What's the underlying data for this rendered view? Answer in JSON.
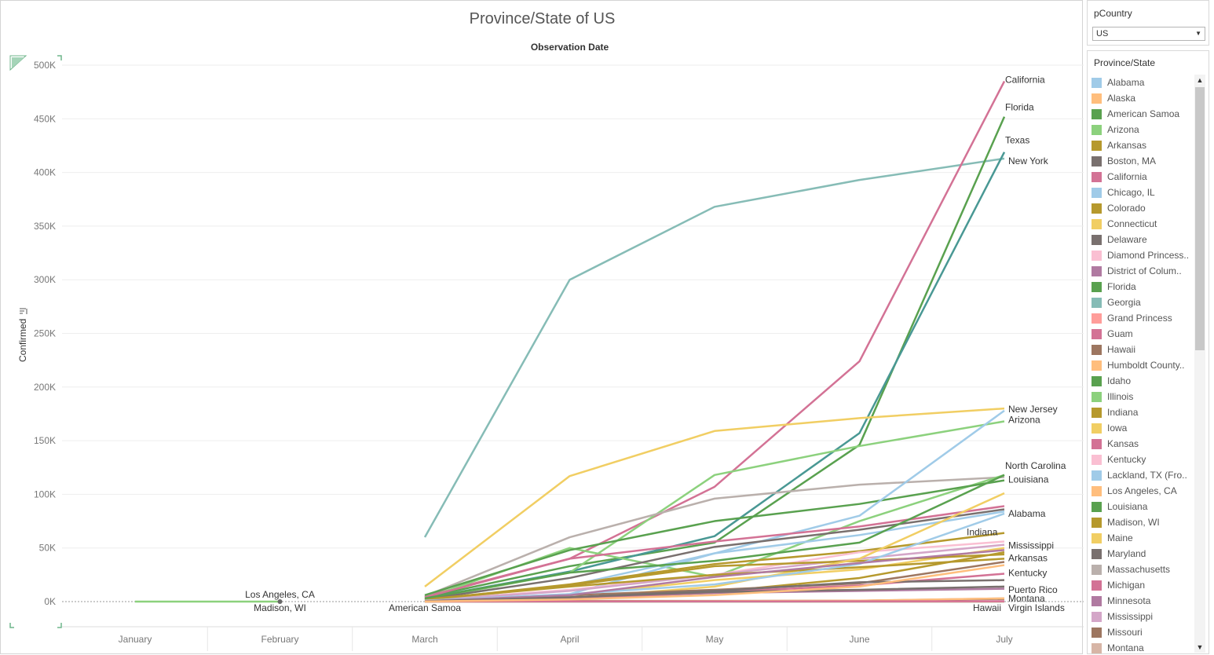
{
  "chart_data": {
    "type": "line",
    "title": "Province/State of US",
    "subtitle": "Observation Date",
    "ylabel": "Confirmed",
    "xlabel": "",
    "categories": [
      "January",
      "February",
      "March",
      "April",
      "May",
      "June",
      "July"
    ],
    "ylim": [
      0,
      500000
    ],
    "yticks": [
      0,
      50000,
      100000,
      150000,
      200000,
      250000,
      300000,
      350000,
      400000,
      450000,
      500000
    ],
    "ytick_labels": [
      "0K",
      "50K",
      "100K",
      "150K",
      "200K",
      "250K",
      "300K",
      "350K",
      "400K",
      "450K",
      "500K"
    ],
    "grid": true,
    "series": [
      {
        "name": "Georgia",
        "color": "#86bcb6",
        "values": [
          null,
          null,
          60000,
          300000,
          368000,
          393000,
          413000
        ]
      },
      {
        "name": "California",
        "color": "#d37295",
        "values": [
          null,
          null,
          5000,
          40000,
          107000,
          224000,
          485000
        ]
      },
      {
        "name": "Florida",
        "color": "#59a14f",
        "values": [
          null,
          null,
          4000,
          33000,
          55000,
          146000,
          452000
        ]
      },
      {
        "name": "Texas",
        "color": "#499894",
        "values": [
          null,
          null,
          3000,
          28000,
          61000,
          157000,
          419000
        ]
      },
      {
        "name": "Connecticut",
        "color": "#f1ce63",
        "values": [
          null,
          null,
          14000,
          117000,
          159000,
          171000,
          180000
        ]
      },
      {
        "name": "Arizona",
        "color": "#8cd17d",
        "values": [
          null,
          null,
          2000,
          27000,
          118000,
          145000,
          168000
        ]
      },
      {
        "name": "Massachusetts",
        "color": "#bab0ac",
        "values": [
          null,
          null,
          5000,
          60000,
          96000,
          109000,
          116000
        ]
      },
      {
        "name": "Illinois",
        "color": "#8cd17d",
        "values": [
          null,
          null,
          3000,
          50000,
          23000,
          75000,
          118000
        ]
      },
      {
        "name": "Idaho",
        "color": "#59a14f",
        "values": [
          null,
          null,
          6000,
          48000,
          75000,
          91000,
          113000
        ]
      },
      {
        "name": "Chicago, IL",
        "color": "#a0cbe8",
        "values": [
          null,
          null,
          1000,
          7000,
          45000,
          80000,
          178000
        ]
      },
      {
        "name": "Michigan",
        "color": "#d37295",
        "values": [
          null,
          null,
          4000,
          40000,
          56000,
          70000,
          89000
        ]
      },
      {
        "name": "Maryland",
        "color": "#79706e",
        "values": [
          null,
          null,
          2000,
          22000,
          51000,
          67000,
          86000
        ]
      },
      {
        "name": "Lackland, TX (From Diamond Princess)",
        "color": "#a0cbe8",
        "values": [
          null,
          null,
          1000,
          15000,
          45000,
          62000,
          84000
        ]
      },
      {
        "name": "Madison, WI",
        "color": "#b6992d",
        "values": [
          null,
          null,
          1500,
          16000,
          35000,
          47000,
          64000
        ]
      },
      {
        "name": "Kentucky",
        "color": "#fabfd2",
        "values": [
          null,
          null,
          1000,
          11000,
          25000,
          46000,
          56000
        ]
      },
      {
        "name": "Mississippi",
        "color": "#d4a6c8",
        "values": [
          null,
          null,
          1000,
          10000,
          25000,
          40000,
          53000
        ]
      },
      {
        "name": "Maine",
        "color": "#f1ce63",
        "values": [
          null,
          null,
          1000,
          6000,
          20000,
          30000,
          50000
        ]
      },
      {
        "name": "Arkansas",
        "color": "#b6992d",
        "values": [
          null,
          null,
          500,
          4000,
          9000,
          22000,
          46000
        ]
      },
      {
        "name": "Indiana",
        "color": "#b6992d",
        "values": [
          null,
          null,
          2000,
          15000,
          33000,
          38000,
          44000
        ]
      },
      {
        "name": "Iowa",
        "color": "#f1ce63",
        "values": [
          null,
          null,
          300,
          3000,
          14000,
          40000,
          101000
        ]
      },
      {
        "name": "Colorado",
        "color": "#b6992d",
        "values": [
          null,
          null,
          2000,
          14000,
          25000,
          32000,
          40000
        ]
      },
      {
        "name": "District of Columbia",
        "color": "#b07aa1",
        "values": [
          null,
          null,
          300,
          3000,
          8000,
          10000,
          12000
        ]
      },
      {
        "name": "Missouri",
        "color": "#9d7660",
        "values": [
          null,
          null,
          500,
          6000,
          11000,
          17000,
          37000
        ]
      },
      {
        "name": "Montana",
        "color": "#d7b5a6",
        "values": [
          null,
          null,
          100,
          400,
          500,
          800,
          3000
        ]
      },
      {
        "name": "Alabama",
        "color": "#a0cbe8",
        "values": [
          null,
          null,
          900,
          7000,
          16000,
          35000,
          82000
        ]
      },
      {
        "name": "Minnesota",
        "color": "#b07aa1",
        "values": [
          null,
          null,
          500,
          6000,
          23000,
          36000,
          48000
        ]
      },
      {
        "name": "Kansas",
        "color": "#d37295",
        "values": [
          null,
          null,
          400,
          2500,
          9000,
          15000,
          26000
        ]
      },
      {
        "name": "Delaware",
        "color": "#79706e",
        "values": [
          null,
          null,
          300,
          4000,
          9000,
          11000,
          14000
        ]
      },
      {
        "name": "Louisiana",
        "color": "#59a14f",
        "values": [
          null,
          null,
          3000,
          27000,
          38000,
          55000,
          118000
        ]
      },
      {
        "name": "American Samoa",
        "color": "#59a14f",
        "values": [
          null,
          null,
          0,
          0,
          0,
          0,
          0
        ]
      },
      {
        "name": "Grand Princess",
        "color": "#ff9d9a",
        "values": [
          null,
          null,
          20,
          100,
          100,
          100,
          100
        ]
      },
      {
        "name": "Hawaii",
        "color": "#9d7660",
        "values": [
          null,
          null,
          100,
          600,
          650,
          800,
          2500
        ]
      },
      {
        "name": "Alaska",
        "color": "#ffbe7d",
        "values": [
          null,
          null,
          100,
          400,
          450,
          900,
          3000
        ]
      },
      {
        "name": "Guam",
        "color": "#d37295",
        "values": [
          null,
          null,
          50,
          140,
          160,
          250,
          350
        ]
      },
      {
        "name": "Los Angeles, CA",
        "color": "#8cd17d",
        "values": [
          1,
          1,
          null,
          null,
          null,
          null,
          null
        ]
      },
      {
        "name": "Madison, WI (Feb)",
        "color": "#666666",
        "values": [
          null,
          1,
          null,
          null,
          null,
          null,
          null
        ]
      },
      {
        "name": "Boston, MA",
        "color": "#79706e",
        "values": [
          null,
          null,
          200,
          4000,
          10000,
          18000,
          20000
        ]
      },
      {
        "name": "Humboldt County, CA",
        "color": "#ffbe7d",
        "values": [
          null,
          null,
          100,
          2000,
          6000,
          14000,
          34000
        ]
      }
    ],
    "annotations": [
      {
        "text": "California",
        "col": 6,
        "value": 485000
      },
      {
        "text": "Florida",
        "col": 6,
        "value": 452000
      },
      {
        "text": "Texas",
        "col": 6,
        "value": 419000
      },
      {
        "text": "New York",
        "col": 6,
        "value": 413000
      },
      {
        "text": "New Jersey",
        "col": 6,
        "value": 180000
      },
      {
        "text": "Arizona",
        "col": 6,
        "value": 168000
      },
      {
        "text": "North Carolina",
        "col": 6,
        "value": 118000
      },
      {
        "text": "Louisiana",
        "col": 6,
        "value": 113000
      },
      {
        "text": "Alabama",
        "col": 6,
        "value": 82000
      },
      {
        "text": "Indiana",
        "col": 6,
        "value": 64000
      },
      {
        "text": "Mississippi",
        "col": 6,
        "value": 53000
      },
      {
        "text": "Arkansas",
        "col": 6,
        "value": 40000
      },
      {
        "text": "Kentucky",
        "col": 6,
        "value": 26000
      },
      {
        "text": "Puerto Rico",
        "col": 6,
        "value": 14000
      },
      {
        "text": "Montana",
        "col": 6,
        "value": 3000
      },
      {
        "text": "Hawaii",
        "col": 6,
        "value": -5000
      },
      {
        "text": "Virgin Islands",
        "col": 6,
        "value": -5000
      },
      {
        "text": "Los Angeles, CA",
        "col": 1,
        "value": 1
      },
      {
        "text": "Madison, WI",
        "col": 1,
        "value": -5000
      },
      {
        "text": "American Samoa",
        "col": 2,
        "value": -5000
      }
    ]
  },
  "filter": {
    "title": "pCountry",
    "selected": "US"
  },
  "legend": {
    "title": "Province/State",
    "items": [
      {
        "label": "Alabama",
        "color": "#a0cbe8"
      },
      {
        "label": "Alaska",
        "color": "#ffbe7d"
      },
      {
        "label": "American Samoa",
        "color": "#59a14f"
      },
      {
        "label": "Arizona",
        "color": "#8cd17d"
      },
      {
        "label": "Arkansas",
        "color": "#b6992d"
      },
      {
        "label": "Boston, MA",
        "color": "#79706e"
      },
      {
        "label": "California",
        "color": "#d37295"
      },
      {
        "label": "Chicago, IL",
        "color": "#a0cbe8"
      },
      {
        "label": "Colorado",
        "color": "#b6992d"
      },
      {
        "label": "Connecticut",
        "color": "#f1ce63"
      },
      {
        "label": "Delaware",
        "color": "#79706e"
      },
      {
        "label": "Diamond Princess..",
        "color": "#fabfd2"
      },
      {
        "label": "District of Colum..",
        "color": "#b07aa1"
      },
      {
        "label": "Florida",
        "color": "#59a14f"
      },
      {
        "label": "Georgia",
        "color": "#86bcb6"
      },
      {
        "label": "Grand Princess",
        "color": "#ff9d9a"
      },
      {
        "label": "Guam",
        "color": "#d37295"
      },
      {
        "label": "Hawaii",
        "color": "#9d7660"
      },
      {
        "label": "Humboldt County..",
        "color": "#ffbe7d"
      },
      {
        "label": "Idaho",
        "color": "#59a14f"
      },
      {
        "label": "Illinois",
        "color": "#8cd17d"
      },
      {
        "label": "Indiana",
        "color": "#b6992d"
      },
      {
        "label": "Iowa",
        "color": "#f1ce63"
      },
      {
        "label": "Kansas",
        "color": "#d37295"
      },
      {
        "label": "Kentucky",
        "color": "#fabfd2"
      },
      {
        "label": "Lackland, TX (Fro..",
        "color": "#a0cbe8"
      },
      {
        "label": "Los Angeles, CA",
        "color": "#ffbe7d"
      },
      {
        "label": "Louisiana",
        "color": "#59a14f"
      },
      {
        "label": "Madison, WI",
        "color": "#b6992d"
      },
      {
        "label": "Maine",
        "color": "#f1ce63"
      },
      {
        "label": "Maryland",
        "color": "#79706e"
      },
      {
        "label": "Massachusetts",
        "color": "#bab0ac"
      },
      {
        "label": "Michigan",
        "color": "#d37295"
      },
      {
        "label": "Minnesota",
        "color": "#b07aa1"
      },
      {
        "label": "Mississippi",
        "color": "#d4a6c8"
      },
      {
        "label": "Missouri",
        "color": "#9d7660"
      },
      {
        "label": "Montana",
        "color": "#d7b5a6"
      }
    ]
  }
}
